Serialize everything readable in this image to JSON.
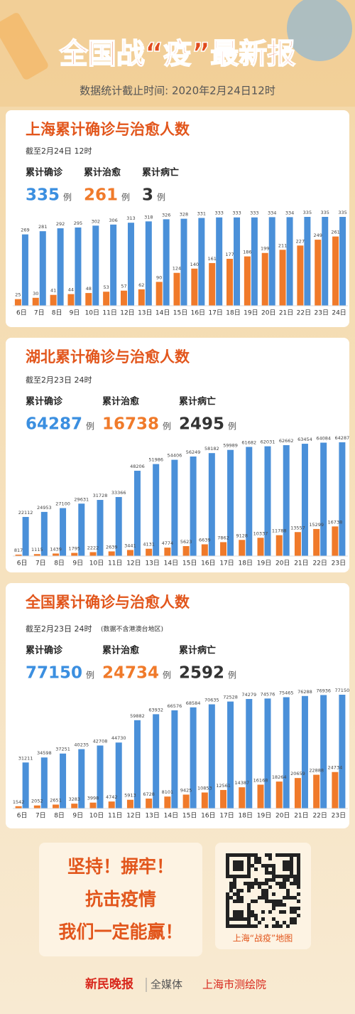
{
  "header": {
    "title": "全国战“疫”最新报",
    "subtitle": "数据统计截止时间: 2020年2月24日12时"
  },
  "chart_data": [
    {
      "type": "bar",
      "title": "上海累计确诊与治愈人数",
      "note": "截至2月24日 12时",
      "stats": [
        {
          "label": "累计确诊",
          "value": 335,
          "unit": "例",
          "color": "#3b8fe0"
        },
        {
          "label": "累计治愈",
          "value": 261,
          "unit": "例",
          "color": "#f07a2a"
        },
        {
          "label": "累计病亡",
          "value": 3,
          "unit": "例",
          "color": "#333333"
        }
      ],
      "categories": [
        "6日",
        "7日",
        "8日",
        "9日",
        "10日",
        "11日",
        "12日",
        "13日",
        "14日",
        "15日",
        "16日",
        "17日",
        "18日",
        "19日",
        "20日",
        "21日",
        "22日",
        "23日",
        "24日"
      ],
      "series": [
        {
          "color": "#4a90d9",
          "values": [
            269,
            281,
            292,
            295,
            302,
            306,
            313,
            318,
            326,
            328,
            331,
            333,
            333,
            333,
            334,
            334,
            335,
            335,
            335
          ]
        },
        {
          "color": "#f07a2a",
          "values": [
            25,
            30,
            41,
            44,
            48,
            53,
            57,
            62,
            90,
            124,
            140,
            161,
            177,
            186,
            199,
            211,
            227,
            249,
            261
          ]
        }
      ]
    },
    {
      "type": "bar",
      "title": "湖北累计确诊与治愈人数",
      "note": "截至2月23日 24时",
      "stats": [
        {
          "label": "累计确诊",
          "value": 64287,
          "unit": "例",
          "color": "#3b8fe0"
        },
        {
          "label": "累计治愈",
          "value": 16738,
          "unit": "例",
          "color": "#f07a2a"
        },
        {
          "label": "累计病亡",
          "value": 2495,
          "unit": "例",
          "color": "#333333"
        }
      ],
      "categories": [
        "6日",
        "7日",
        "8日",
        "9日",
        "10日",
        "11日",
        "12日",
        "13日",
        "14日",
        "15日",
        "16日",
        "17日",
        "18日",
        "19日",
        "20日",
        "21日",
        "22日",
        "23日"
      ],
      "series": [
        {
          "color": "#4a90d9",
          "values": [
            22112,
            24953,
            27100,
            29631,
            31728,
            33366,
            48206,
            51986,
            54406,
            56249,
            58182,
            59989,
            61682,
            62031,
            62662,
            63454,
            64084,
            64287
          ]
        },
        {
          "color": "#f07a2a",
          "values": [
            817,
            1115,
            1439,
            1795,
            2222,
            2639,
            3441,
            4131,
            4774,
            5623,
            6639,
            7862,
            9128,
            10337,
            11788,
            13557,
            15299,
            16738
          ]
        }
      ]
    },
    {
      "type": "bar",
      "title": "全国累计确诊与治愈人数",
      "note": "截至2月23日 24时",
      "note2": "(数据不含港澳台地区)",
      "stats": [
        {
          "label": "累计确诊",
          "value": 77150,
          "unit": "例",
          "color": "#3b8fe0"
        },
        {
          "label": "累计治愈",
          "value": 24734,
          "unit": "例",
          "color": "#f07a2a"
        },
        {
          "label": "累计病亡",
          "value": 2592,
          "unit": "例",
          "color": "#333333"
        }
      ],
      "categories": [
        "6日",
        "7日",
        "8日",
        "9日",
        "10日",
        "11日",
        "12日",
        "13日",
        "14日",
        "15日",
        "16日",
        "17日",
        "18日",
        "19日",
        "20日",
        "21日",
        "22日",
        "23日"
      ],
      "series": [
        {
          "color": "#4a90d9",
          "values": [
            31211,
            34598,
            37251,
            40235,
            42708,
            44730,
            59882,
            63932,
            66576,
            68584,
            70635,
            72528,
            74279,
            74576,
            75465,
            76288,
            76936,
            77150
          ]
        },
        {
          "color": "#f07a2a",
          "values": [
            1542,
            2052,
            2651,
            3283,
            3998,
            4742,
            5913,
            6728,
            8101,
            9425,
            10853,
            12561,
            14387,
            16168,
            18264,
            20659,
            22888,
            24734
          ]
        }
      ]
    }
  ],
  "footer": {
    "slogan": [
      "坚持！摒牢！",
      "抗击疫情",
      "我们一定能赢！"
    ],
    "qr_caption": "上海“战疫”地图",
    "brand": "新民晚报",
    "media": "全媒体",
    "partner": "上海市测绘院"
  }
}
